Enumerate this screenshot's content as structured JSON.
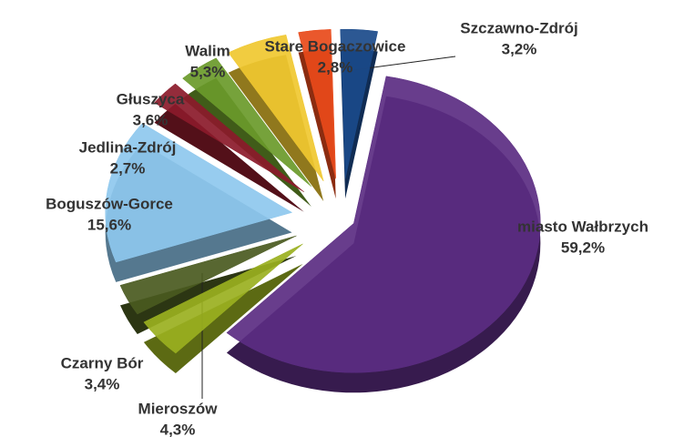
{
  "chart_data": {
    "type": "pie",
    "categories": [
      "miasto Wałbrzych",
      "Mieroszów",
      "Czarny Bór",
      "Boguszów-Gorce",
      "Jedlina-Zdrój",
      "Głuszyca",
      "Walim",
      "Stare Bogaczowice",
      "Szczawno-Zdrój"
    ],
    "values": [
      59.2,
      4.3,
      3.4,
      15.6,
      2.7,
      3.6,
      5.3,
      2.8,
      3.2
    ],
    "value_labels": [
      "59,2%",
      "4,3%",
      "3,4%",
      "15,6%",
      "2,7%",
      "3,6%",
      "5,3%",
      "2,8%",
      "3,2%"
    ],
    "colors": [
      "#5b2d82",
      "#9ab020",
      "#4a5a20",
      "#8ec8ee",
      "#8b1a2a",
      "#6a9a2a",
      "#f0c830",
      "#e84a1a",
      "#1a4a8a"
    ]
  }
}
